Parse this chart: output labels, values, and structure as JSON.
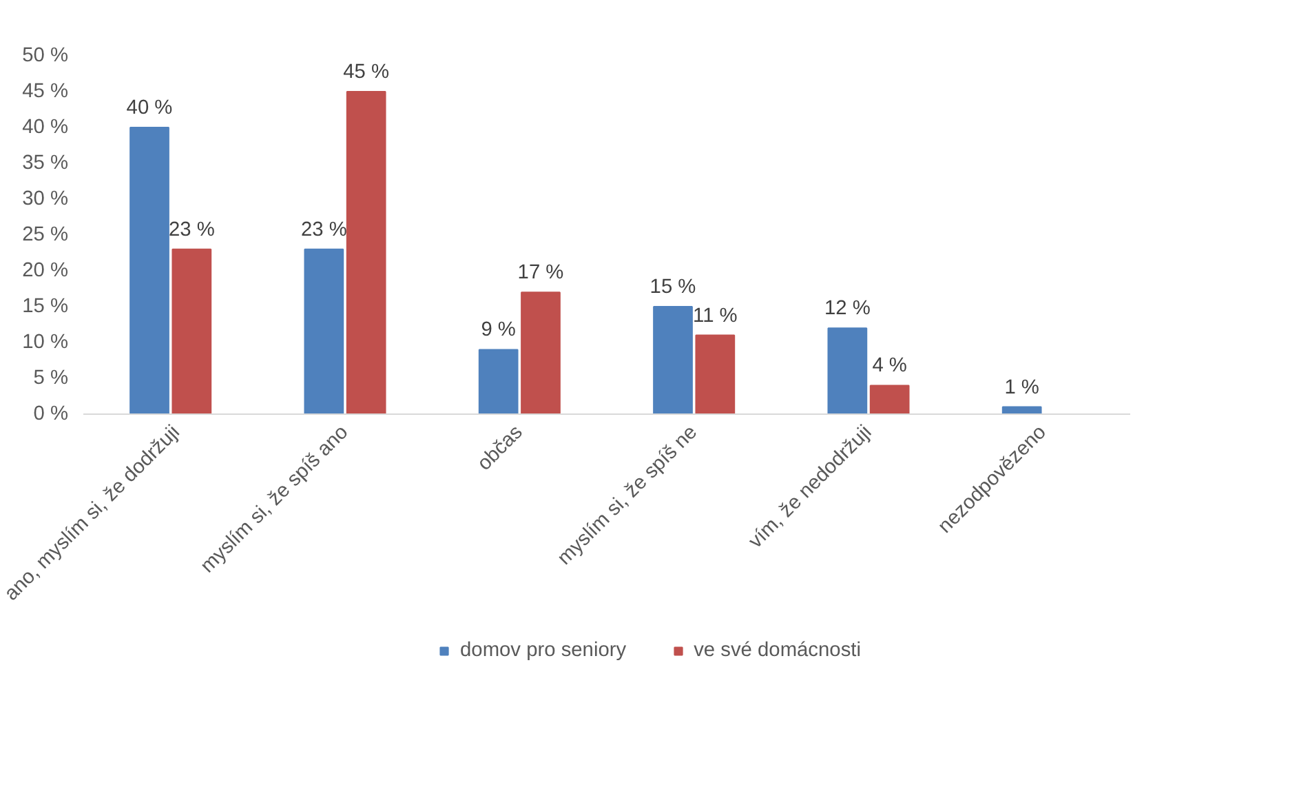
{
  "chart_data": {
    "type": "bar",
    "categories": [
      "ano, myslím si, že dodržuji",
      "myslím si, že spíš ano",
      "občas",
      "myslím si, že spíš ne",
      "vím, že nedodržuji",
      "nezodpovězeno"
    ],
    "series": [
      {
        "name": "domov pro seniory",
        "color": "#4f81bd",
        "values": [
          40,
          23,
          9,
          15,
          12,
          1
        ],
        "value_labels": [
          "40 %",
          "23 %",
          "9 %",
          "15 %",
          "12 %",
          "1 %"
        ]
      },
      {
        "name": "ve své domácnosti",
        "color": "#c0504d",
        "values": [
          23,
          45,
          17,
          11,
          4,
          null
        ],
        "value_labels": [
          "23 %",
          "45 %",
          "17 %",
          "11 %",
          "4 %",
          null
        ]
      }
    ],
    "ylim": [
      0,
      50
    ],
    "yticks": [
      {
        "value": 0,
        "label": "0 %"
      },
      {
        "value": 5,
        "label": "5 %"
      },
      {
        "value": 10,
        "label": "10 %"
      },
      {
        "value": 15,
        "label": "15 %"
      },
      {
        "value": 20,
        "label": "20 %"
      },
      {
        "value": 25,
        "label": "25 %"
      },
      {
        "value": 30,
        "label": "30 %"
      },
      {
        "value": 35,
        "label": "35 %"
      },
      {
        "value": 40,
        "label": "40 %"
      },
      {
        "value": 45,
        "label": "45 %"
      },
      {
        "value": 50,
        "label": "50 %"
      }
    ],
    "grid": false,
    "legend": "bottom"
  }
}
